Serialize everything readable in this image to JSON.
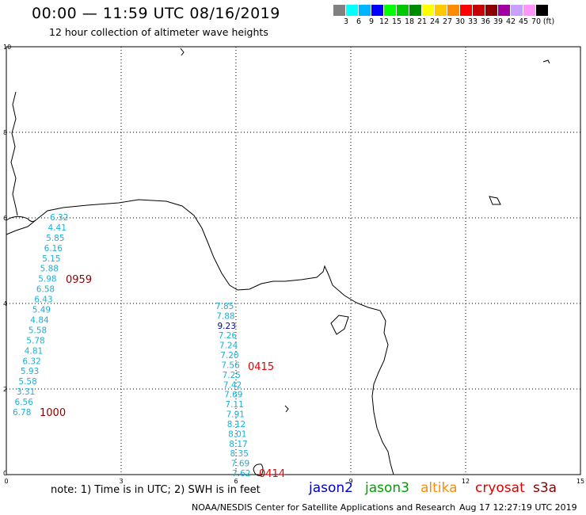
{
  "header": {
    "title": "00:00 — 11:59 UTC 08/16/2019",
    "subtitle": "12 hour collection of altimeter wave heights"
  },
  "color_scale": {
    "colors": [
      "#808080",
      "#00ffff",
      "#00b4ff",
      "#0000ff",
      "#00ff00",
      "#00c800",
      "#008c00",
      "#ffff00",
      "#ffc800",
      "#ff8c00",
      "#ff0000",
      "#c80000",
      "#8c0000",
      "#a000a0",
      "#c8a0ff",
      "#ff96ff",
      "#000000"
    ],
    "labels": [
      "3",
      "6",
      "9",
      "12",
      "15",
      "18",
      "21",
      "24",
      "27",
      "30",
      "33",
      "36",
      "39",
      "42",
      "45",
      "70",
      "(ft)"
    ]
  },
  "axes": {
    "x_ticks": [
      "0",
      "3",
      "6",
      "9",
      "12",
      "15"
    ],
    "y_ticks": [
      "0",
      "2",
      "4",
      "6",
      "8",
      "10"
    ]
  },
  "tracks": [
    {
      "name": "track-west",
      "color": "#1ab0d8",
      "values": [
        "6.32",
        "4.41",
        "5.85",
        "6.16",
        "5.15",
        "5.88",
        "5.98",
        "6.58",
        "6.43",
        "5.49",
        "4.84",
        "5.58",
        "5.78",
        "4.81",
        "6.32",
        "5.93",
        "5.58",
        "3.31",
        "6.56",
        "6.78"
      ],
      "overlap_value": "5.88",
      "labels": [
        {
          "text": "0959",
          "color": "#8b0000"
        },
        {
          "text": "1000",
          "color": "#8b0000"
        }
      ]
    },
    {
      "name": "track-central",
      "color": "#1ab0d8",
      "values": [
        "7.85",
        "7.88",
        "9.23",
        "7.26",
        "7.24",
        "7.20",
        "7.56",
        "7.25",
        "7.42",
        "7.69",
        "7.11",
        "7.91",
        "8.12",
        "8.01",
        "8.17",
        "8.35",
        "7.69",
        "7.62"
      ],
      "highlight_value": "9.23",
      "highlight_color": "#0000b4",
      "labels": [
        {
          "text": "0415",
          "color": "#e00000"
        },
        {
          "text": "0414",
          "color": "#e00000"
        }
      ]
    }
  ],
  "note": "note:  1) Time is in UTC;  2) SWH is in feet",
  "satellites": [
    {
      "name": "jason2",
      "color": "#0000c8"
    },
    {
      "name": "jason3",
      "color": "#00a000"
    },
    {
      "name": "altika",
      "color": "#ff8c00"
    },
    {
      "name": "cryosat",
      "color": "#e00000"
    },
    {
      "name": "s3a",
      "color": "#8b0000"
    }
  ],
  "footer": {
    "credit": "NOAA/NESDIS Center for Satellite Applications and Research",
    "timestamp": "Aug 17 12:27:19 UTC 2019"
  }
}
